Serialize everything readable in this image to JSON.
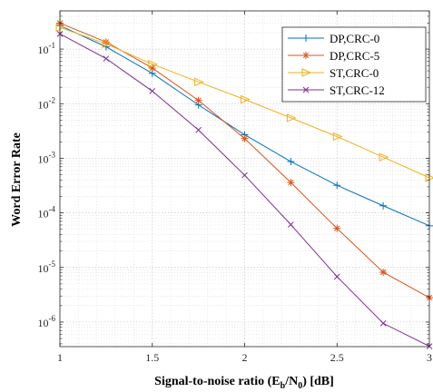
{
  "chart_data": {
    "type": "line",
    "title": "",
    "xlabel": "Signal-to-noise ratio (E_b/N_0) [dB]",
    "xlabel_parts": {
      "prefix": "Signal-to-noise ratio (E",
      "sub1": "b",
      "middle": "/N",
      "sub2": "0",
      "suffix": ") [dB]"
    },
    "ylabel": "Word  Error  Rate",
    "xlim": [
      1,
      3
    ],
    "ylim_log10": [
      -6.45,
      -0.3
    ],
    "y_scale": "log",
    "grid": "major-and-minor, dotted",
    "legend_position": "top-right",
    "x_ticks": [
      1,
      1.5,
      2,
      2.5,
      3
    ],
    "x_tick_labels": [
      "1",
      "1.5",
      "2",
      "2.5",
      "3"
    ],
    "y_ticks": [
      {
        "mant": "10",
        "exp": "-6",
        "value": 1e-06
      },
      {
        "mant": "10",
        "exp": "-5",
        "value": 1e-05
      },
      {
        "mant": "10",
        "exp": "-4",
        "value": 0.0001
      },
      {
        "mant": "10",
        "exp": "-3",
        "value": 0.001
      },
      {
        "mant": "10",
        "exp": "-2",
        "value": 0.01
      },
      {
        "mant": "10",
        "exp": "-1",
        "value": 0.1
      }
    ],
    "x": [
      1,
      1.25,
      1.5,
      1.75,
      2,
      2.25,
      2.5,
      2.75,
      3
    ],
    "series": [
      {
        "name": "DP,CRC-0",
        "color": "#0072BD",
        "marker": "plus",
        "values": [
          0.27,
          0.11,
          0.036,
          0.0095,
          0.0027,
          0.00087,
          0.00032,
          0.000135,
          5.8e-05
        ]
      },
      {
        "name": "DP,CRC-5",
        "color": "#D95319",
        "marker": "star",
        "values": [
          0.3,
          0.135,
          0.045,
          0.0115,
          0.0023,
          0.00036,
          5.2e-05,
          8.2e-06,
          2.8e-06
        ]
      },
      {
        "name": "ST,CRC-0",
        "color": "#EDB120",
        "marker": "triangle-right",
        "values": [
          0.25,
          0.125,
          0.053,
          0.025,
          0.012,
          0.0055,
          0.0025,
          0.00105,
          0.00044
        ]
      },
      {
        "name": "ST,CRC-12",
        "color": "#7E2F8E",
        "marker": "x",
        "values": [
          0.19,
          0.067,
          0.017,
          0.0033,
          0.00049,
          6.1e-05,
          6.8e-06,
          9.5e-07,
          3.6e-07
        ]
      }
    ]
  }
}
